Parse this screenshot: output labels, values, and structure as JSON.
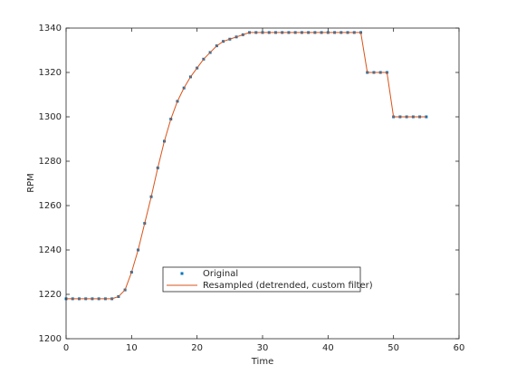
{
  "chart_data": {
    "type": "line",
    "xlabel": "Time",
    "ylabel": "RPM",
    "x": [
      0,
      1,
      2,
      3,
      4,
      5,
      6,
      7,
      8,
      9,
      10,
      11,
      12,
      13,
      14,
      15,
      16,
      17,
      18,
      19,
      20,
      21,
      22,
      23,
      24,
      25,
      26,
      27,
      28,
      29,
      30,
      31,
      32,
      33,
      34,
      35,
      36,
      37,
      38,
      39,
      40,
      41,
      42,
      43,
      44,
      45,
      46,
      47,
      48,
      49,
      50,
      51,
      52,
      53,
      54,
      55
    ],
    "series": [
      {
        "name": "Original",
        "color": "#0072bd",
        "marker": "dot",
        "values": [
          1218,
          1218,
          1218,
          1218,
          1218,
          1218,
          1218,
          1218,
          1219,
          1222,
          1230,
          1240,
          1252,
          1264,
          1277,
          1289,
          1299,
          1307,
          1313,
          1318,
          1322,
          1326,
          1329,
          1332,
          1334,
          1335,
          1336,
          1337,
          1338,
          1338,
          1338,
          1338,
          1338,
          1338,
          1338,
          1338,
          1338,
          1338,
          1338,
          1338,
          1338,
          1338,
          1338,
          1338,
          1338,
          1338,
          1320,
          1320,
          1320,
          1320,
          1300,
          1300,
          1300,
          1300,
          1300,
          1300
        ]
      },
      {
        "name": "Resampled (detrended, custom filter)",
        "color": "#d95319",
        "marker": "line",
        "values": [
          1218,
          1218,
          1218,
          1218,
          1218,
          1218,
          1218,
          1218,
          1219,
          1222,
          1230,
          1240,
          1252,
          1264,
          1277,
          1289,
          1299,
          1307,
          1313,
          1318,
          1322,
          1326,
          1329,
          1332,
          1334,
          1335,
          1336,
          1337,
          1338,
          1338,
          1338,
          1338,
          1338,
          1338,
          1338,
          1338,
          1338,
          1338,
          1338,
          1338,
          1338,
          1338,
          1338,
          1338,
          1338,
          1338,
          1320,
          1320,
          1320,
          1320,
          1300,
          1300,
          1300,
          1300,
          1300,
          1300
        ]
      }
    ],
    "xlim": [
      0,
      60
    ],
    "xticks": [
      0,
      10,
      20,
      30,
      40,
      50,
      60
    ],
    "ylim": [
      1200,
      1340
    ],
    "yticks": [
      1200,
      1220,
      1240,
      1260,
      1280,
      1300,
      1320,
      1340
    ],
    "legend": "bottom-center"
  }
}
